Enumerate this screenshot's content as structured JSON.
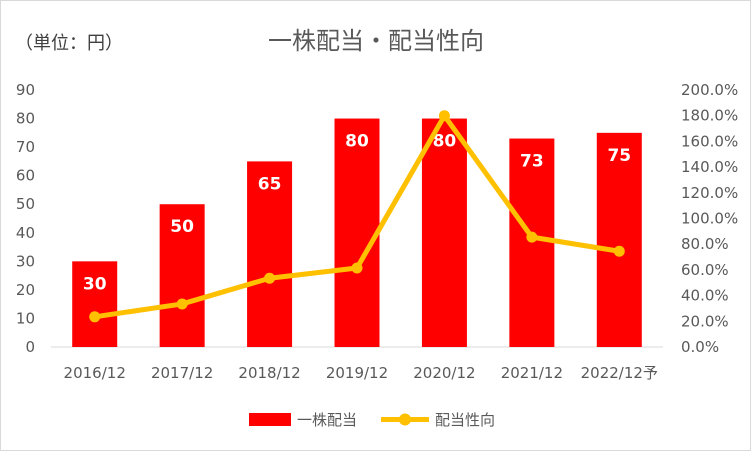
{
  "chart_data": {
    "type": "bar",
    "title": "一株配当・配当性向",
    "unit_label": "（単位：円）",
    "categories": [
      "2016/12",
      "2017/12",
      "2018/12",
      "2019/12",
      "2020/12",
      "2021/12",
      "2022/12予"
    ],
    "series": [
      {
        "name": "一株配当",
        "type": "bar",
        "axis": "left",
        "values": [
          30,
          50,
          65,
          80,
          80,
          73,
          75
        ]
      },
      {
        "name": "配当性向",
        "type": "line",
        "axis": "right",
        "values": [
          23.5,
          33.5,
          53.5,
          61.5,
          180.0,
          85.5,
          74.5
        ]
      }
    ],
    "y_left": {
      "min": 0,
      "max": 90,
      "step": 10,
      "ticks": [
        "0",
        "10",
        "20",
        "30",
        "40",
        "50",
        "60",
        "70",
        "80",
        "90"
      ]
    },
    "y_right": {
      "min": 0,
      "max": 200,
      "step": 20,
      "ticks": [
        "0.0%",
        "20.0%",
        "40.0%",
        "60.0%",
        "80.0%",
        "100.0%",
        "120.0%",
        "140.0%",
        "160.0%",
        "180.0%",
        "200.0%"
      ]
    },
    "data_labels": [
      "30",
      "50",
      "65",
      "80",
      "80",
      "73",
      "75"
    ],
    "grid": false,
    "legend_position": "bottom",
    "colors": {
      "bar": "#ff0000",
      "line": "#ffc000"
    }
  }
}
